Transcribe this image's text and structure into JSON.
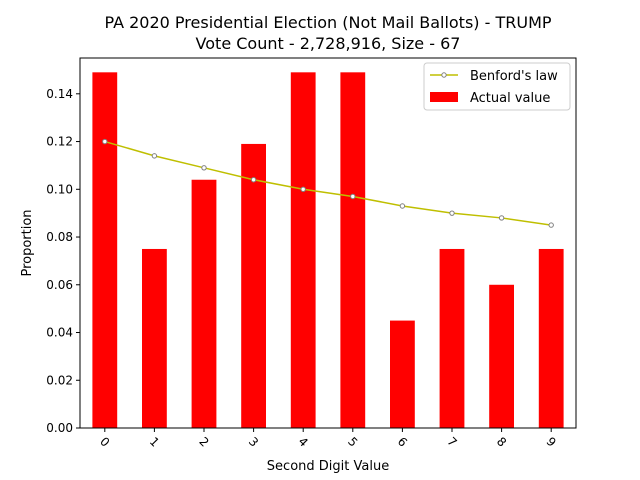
{
  "chart_data": {
    "type": "bar",
    "title": [
      "PA 2020 Presidential Election (Not Mail Ballots) - TRUMP",
      "Vote Count - 2,728,916, Size - 67"
    ],
    "xlabel": "Second Digit Value",
    "ylabel": "Proportion",
    "categories": [
      "0",
      "1",
      "2",
      "3",
      "4",
      "5",
      "6",
      "7",
      "8",
      "9"
    ],
    "ylim": [
      0,
      0.155
    ],
    "yticks": [
      0.0,
      0.02,
      0.04,
      0.06,
      0.08,
      0.1,
      0.12,
      0.14
    ],
    "ytick_labels": [
      "0.00",
      "0.02",
      "0.04",
      "0.06",
      "0.08",
      "0.10",
      "0.12",
      "0.14"
    ],
    "x_tick_rotation_deg": 45,
    "grid": false,
    "legend_position": "top-right",
    "series": [
      {
        "name": "Benford's law",
        "kind": "line",
        "color": "#bfbf00",
        "marker": "circle",
        "values": [
          0.12,
          0.114,
          0.109,
          0.104,
          0.1,
          0.097,
          0.093,
          0.09,
          0.088,
          0.085
        ]
      },
      {
        "name": "Actual value",
        "kind": "bar",
        "color": "#ff0000",
        "values": [
          0.149,
          0.075,
          0.104,
          0.119,
          0.149,
          0.149,
          0.045,
          0.075,
          0.06,
          0.075
        ]
      }
    ]
  }
}
